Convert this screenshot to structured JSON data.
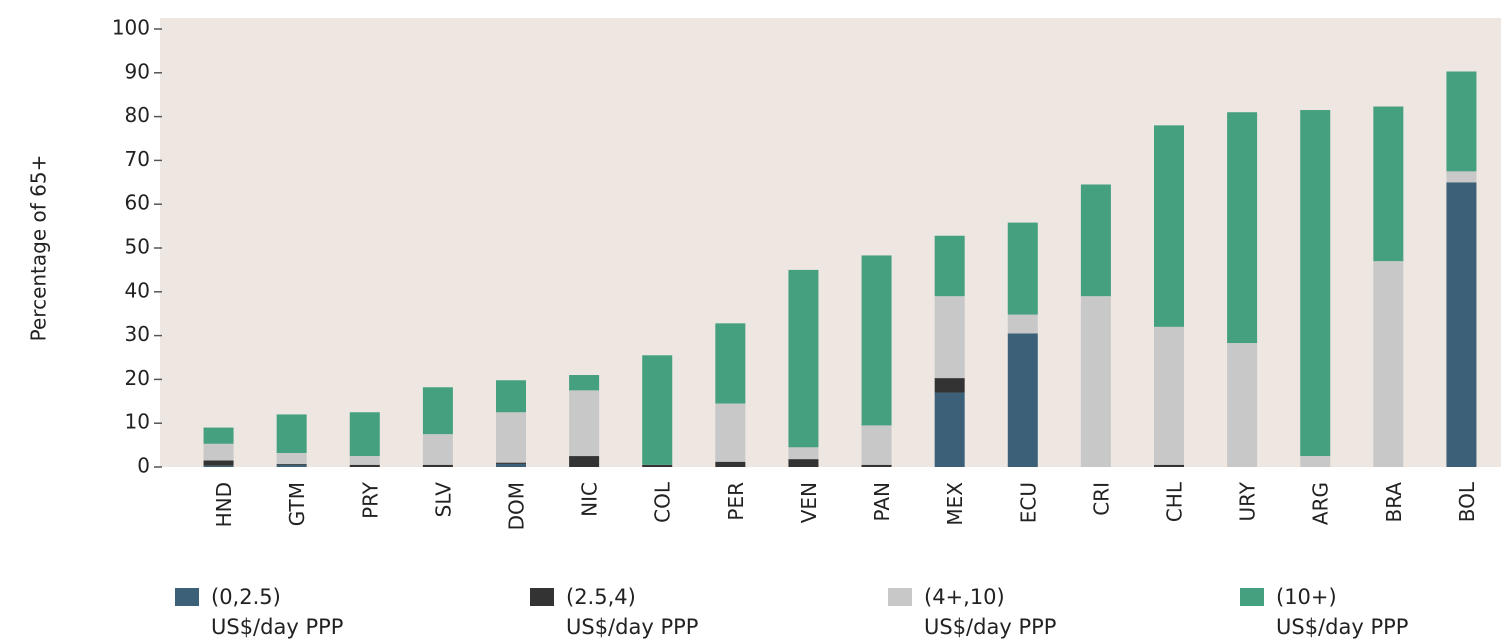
{
  "chart_data": {
    "type": "stacked_bar",
    "y_label": "Percentage of 65+",
    "categories": [
      "HND",
      "GTM",
      "PRY",
      "SLV",
      "DOM",
      "NIC",
      "COL",
      "PER",
      "VEN",
      "PAN",
      "MEX",
      "ECU",
      "CRI",
      "CHL",
      "URY",
      "ARG",
      "BRA",
      "BOL"
    ],
    "series": [
      {
        "name": "(0,2.5)\nUS$/day PPP",
        "color": "#3d6079",
        "values": [
          0.3,
          0.5,
          0,
          0,
          0.7,
          0,
          0,
          0,
          0,
          0,
          17,
          30.5,
          0,
          0,
          0,
          0,
          0,
          65
        ]
      },
      {
        "name": "(2.5,4)\nUS$/day PPP",
        "color": "#333333",
        "values": [
          1.2,
          0.2,
          0.5,
          0.5,
          0.3,
          2.5,
          0.5,
          1.2,
          1.8,
          0.5,
          3.3,
          0,
          0,
          0.5,
          0,
          0,
          0,
          0
        ]
      },
      {
        "name": "(4+,10)\nUS$/day PPP",
        "color": "#c8c8c8",
        "values": [
          3.8,
          2.5,
          2,
          7,
          11.5,
          15,
          0,
          13.3,
          2.7,
          9,
          18.7,
          4.3,
          39,
          31.5,
          28.3,
          2.5,
          47,
          2.5
        ]
      },
      {
        "name": "(10+)\nUS$/day PPP",
        "color": "#45a080",
        "values": [
          3.7,
          8.8,
          10,
          10.7,
          7.3,
          3.5,
          25,
          18.3,
          40.5,
          38.8,
          13.8,
          21,
          25.5,
          46,
          52.7,
          79,
          35.3,
          22.8
        ]
      }
    ],
    "ylim": [
      0,
      100
    ],
    "yticks": [
      0,
      10,
      20,
      30,
      40,
      50,
      60,
      70,
      80,
      90,
      100
    ]
  }
}
